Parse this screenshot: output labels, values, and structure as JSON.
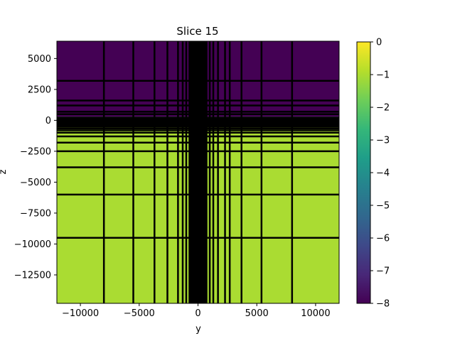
{
  "chart_data": {
    "type": "heatmap",
    "title": "Slice 15",
    "xlabel": "y",
    "ylabel": "z",
    "xlim": [
      -12000,
      12000
    ],
    "ylim": [
      -14800,
      6400
    ],
    "x_ticks": [
      -10000,
      -5000,
      0,
      5000,
      10000
    ],
    "x_tick_labels": [
      "−10000",
      "−5000",
      "0",
      "5000",
      "10000"
    ],
    "y_ticks": [
      5000,
      2500,
      0,
      -2500,
      -5000,
      -7500,
      -10000,
      -12500
    ],
    "y_tick_labels": [
      "5000",
      "2500",
      "0",
      "−2500",
      "−5000",
      "−7500",
      "−10000",
      "−12500"
    ],
    "regions": [
      {
        "z_range": [
          300,
          6400
        ],
        "value": -8,
        "color": "#440154"
      },
      {
        "z_range": [
          -14800,
          -500
        ],
        "value": -1,
        "color": "#aadc32"
      },
      {
        "z_range": [
          -500,
          300
        ],
        "value": null,
        "color": "#000000"
      }
    ],
    "grid_lines_x": [
      -8000,
      -5500,
      -3700,
      -2600,
      -1700,
      -1300,
      -1000,
      -700,
      -400,
      400,
      700,
      1000,
      1300,
      1700,
      2300,
      2700,
      3700,
      5400,
      8000
    ],
    "dense_x_band": [
      -800,
      800
    ],
    "grid_lines_z": [
      3200,
      1600,
      1200,
      700,
      500,
      -500,
      -650,
      -800,
      -1000,
      -1300,
      -1800,
      -2500,
      -3800,
      -6000,
      -9500
    ],
    "grid_line_color": "#000000",
    "colorbar": {
      "colormap": "viridis",
      "range": [
        -8,
        0
      ],
      "ticks": [
        0,
        -1,
        -2,
        -3,
        -4,
        -5,
        -6,
        -7,
        -8
      ],
      "tick_labels": [
        "0",
        "−1",
        "−2",
        "−3",
        "−4",
        "−5",
        "−6",
        "−7",
        "−8"
      ],
      "stops": [
        "#440154",
        "#482878",
        "#3e4989",
        "#31688e",
        "#26828e",
        "#1f9e89",
        "#35b779",
        "#6ece58",
        "#b5de2b",
        "#fde725"
      ]
    }
  }
}
